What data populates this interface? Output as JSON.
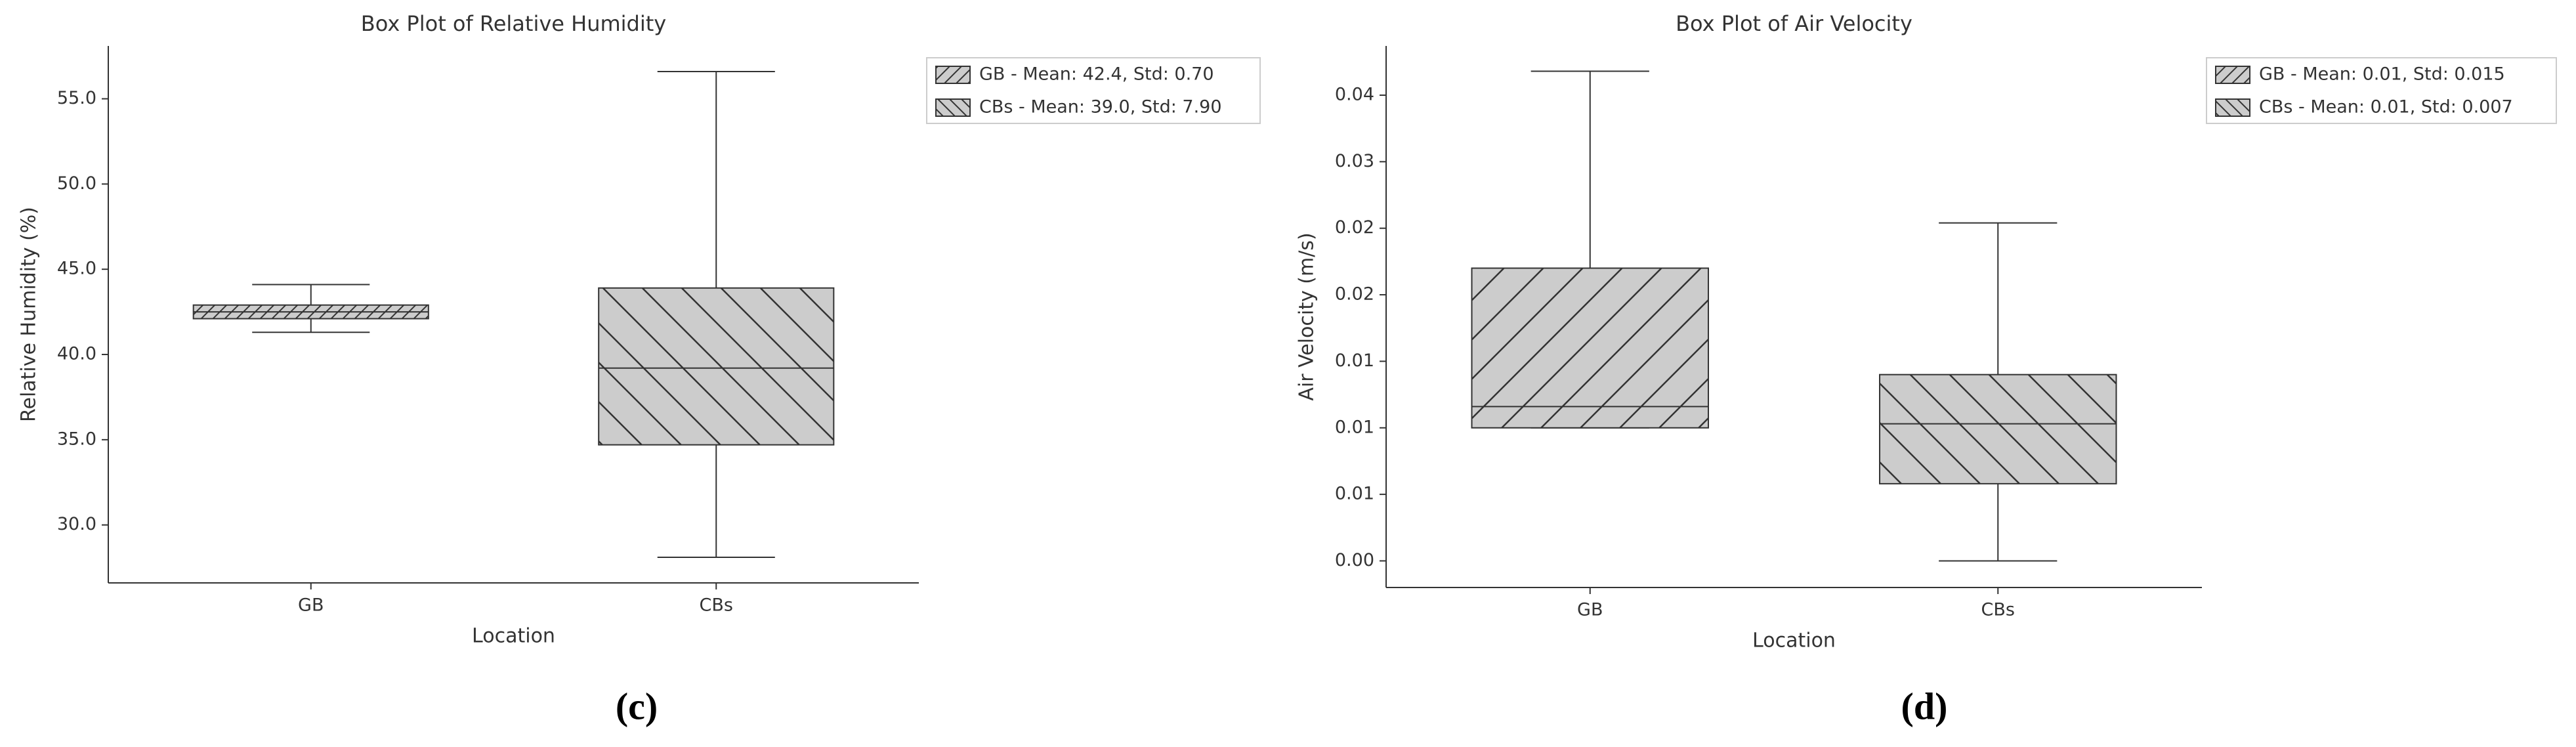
{
  "chart_data": [
    {
      "type": "box",
      "title": "Box Plot of Relative Humidity",
      "xlabel": "Location",
      "ylabel": "Relative Humidity (%)",
      "caption": "(c)",
      "categories": [
        "GB",
        "CBs"
      ],
      "boxes": [
        {
          "name": "GB - Mean: 42.4, Std: 0.70",
          "hatch": "//",
          "color": "#cccccc",
          "low": 41.3,
          "q1": 42.1,
          "median": 42.5,
          "q3": 42.9,
          "high": 44.1
        },
        {
          "name": "CBs - Mean: 39.0, Std: 7.90",
          "hatch": "\\\\",
          "color": "#cccccc",
          "low": 28.1,
          "q1": 34.7,
          "median": 39.2,
          "q3": 43.9,
          "high": 56.6
        }
      ],
      "ylim": [
        26.6,
        58.1
      ],
      "yticks": [
        {
          "value": 30,
          "label": "30.0"
        },
        {
          "value": 35,
          "label": "35.0"
        },
        {
          "value": 40,
          "label": "40.0"
        },
        {
          "value": 45,
          "label": "45.0"
        },
        {
          "value": 50,
          "label": "50.0"
        },
        {
          "value": 55,
          "label": "55.0"
        }
      ],
      "grid": false,
      "legend": "outside right"
    },
    {
      "type": "box",
      "title": "Box Plot of Air Velocity",
      "xlabel": "Location",
      "ylabel": "Air Velocity (m/s)",
      "caption": "(d)",
      "categories": [
        "GB",
        "CBs"
      ],
      "boxes": [
        {
          "name": "GB - Mean: 0.01, Std: 0.015",
          "hatch": "//",
          "color": "#cccccc",
          "low": 0.01,
          "q1": 0.01,
          "median": 0.0116,
          "q3": 0.022,
          "high": 0.0368
        },
        {
          "name": "CBs - Mean: 0.01, Std: 0.007",
          "hatch": "\\\\",
          "color": "#cccccc",
          "low": 0,
          "q1": 0.0058,
          "median": 0.0103,
          "q3": 0.014,
          "high": 0.0254
        }
      ],
      "ylim": [
        -0.002,
        0.0387
      ],
      "yticks": [
        {
          "value": 0,
          "label": "0.00"
        },
        {
          "value": 0.005,
          "label": "0.01"
        },
        {
          "value": 0.01,
          "label": "0.01"
        },
        {
          "value": 0.015,
          "label": "0.01"
        },
        {
          "value": 0.02,
          "label": "0.02"
        },
        {
          "value": 0.025,
          "label": "0.02"
        },
        {
          "value": 0.03,
          "label": "0.03"
        },
        {
          "value": 0.035,
          "label": "0.04"
        }
      ],
      "grid": false,
      "legend": "outside right"
    }
  ]
}
